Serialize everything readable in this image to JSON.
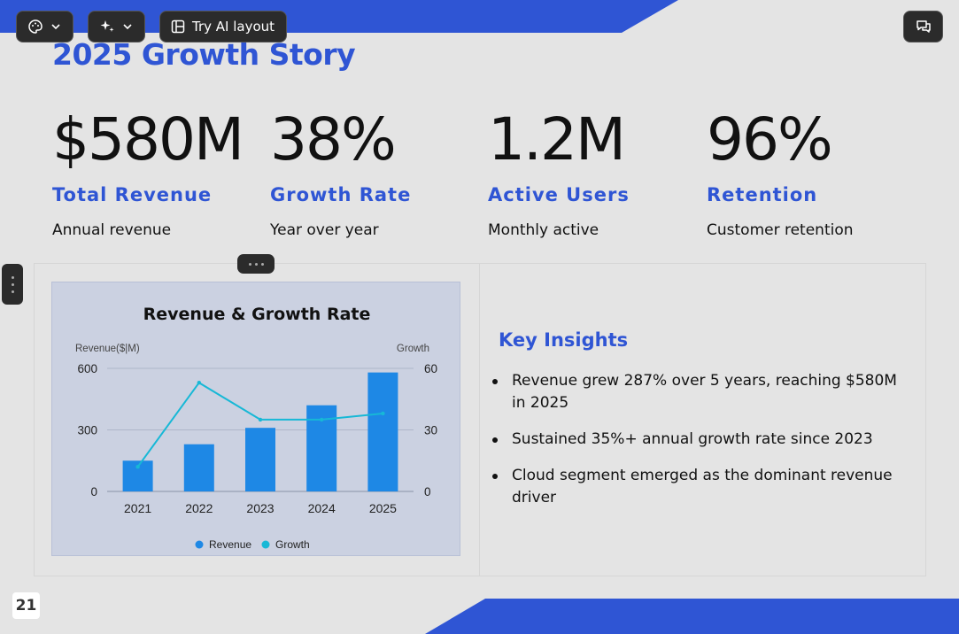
{
  "toolbar": {
    "theme_icon": "palette-icon",
    "ai_icon": "sparkle-icon",
    "layout_label": "Try AI layout",
    "layout_icon": "layout-icon",
    "chat_icon": "chat-icon"
  },
  "slide": {
    "title": "2025 Growth Story",
    "accent_color": "#2f55d4",
    "stats": [
      {
        "value": "$580M",
        "label": "Total Revenue",
        "desc": "Annual revenue"
      },
      {
        "value": "38%",
        "label": "Growth Rate",
        "desc": "Year over year"
      },
      {
        "value": "1.2M",
        "label": "Active Users",
        "desc": "Monthly active"
      },
      {
        "value": "96%",
        "label": "Retention",
        "desc": "Customer retention"
      }
    ],
    "insights_title": "Key Insights",
    "insights": [
      "Revenue grew 287% over 5 years, reaching $580M in 2025",
      "Sustained 35%+ annual growth rate since 2023",
      "Cloud segment emerged as the dominant revenue driver"
    ],
    "page_number": "21"
  },
  "chart_data": {
    "type": "bar",
    "title": "Revenue & Growth Rate",
    "categories": [
      "2021",
      "2022",
      "2023",
      "2024",
      "2025"
    ],
    "series": [
      {
        "name": "Revenue",
        "type": "bar",
        "axis": "left",
        "color": "#1e88e5",
        "values": [
          150,
          230,
          310,
          420,
          580
        ]
      },
      {
        "name": "Growth",
        "type": "line",
        "axis": "right",
        "color": "#17b8d6",
        "values": [
          12,
          53,
          35,
          35,
          38
        ]
      }
    ],
    "ylabel_left": "Revenue($|M)",
    "ylabel_right": "Growth",
    "ylim_left": [
      0,
      600
    ],
    "ylim_right": [
      0,
      60
    ],
    "yticks_left": [
      "0",
      "300",
      "600"
    ],
    "yticks_right": [
      "0",
      "30",
      "60"
    ],
    "grid": true,
    "legend": "bottom"
  }
}
